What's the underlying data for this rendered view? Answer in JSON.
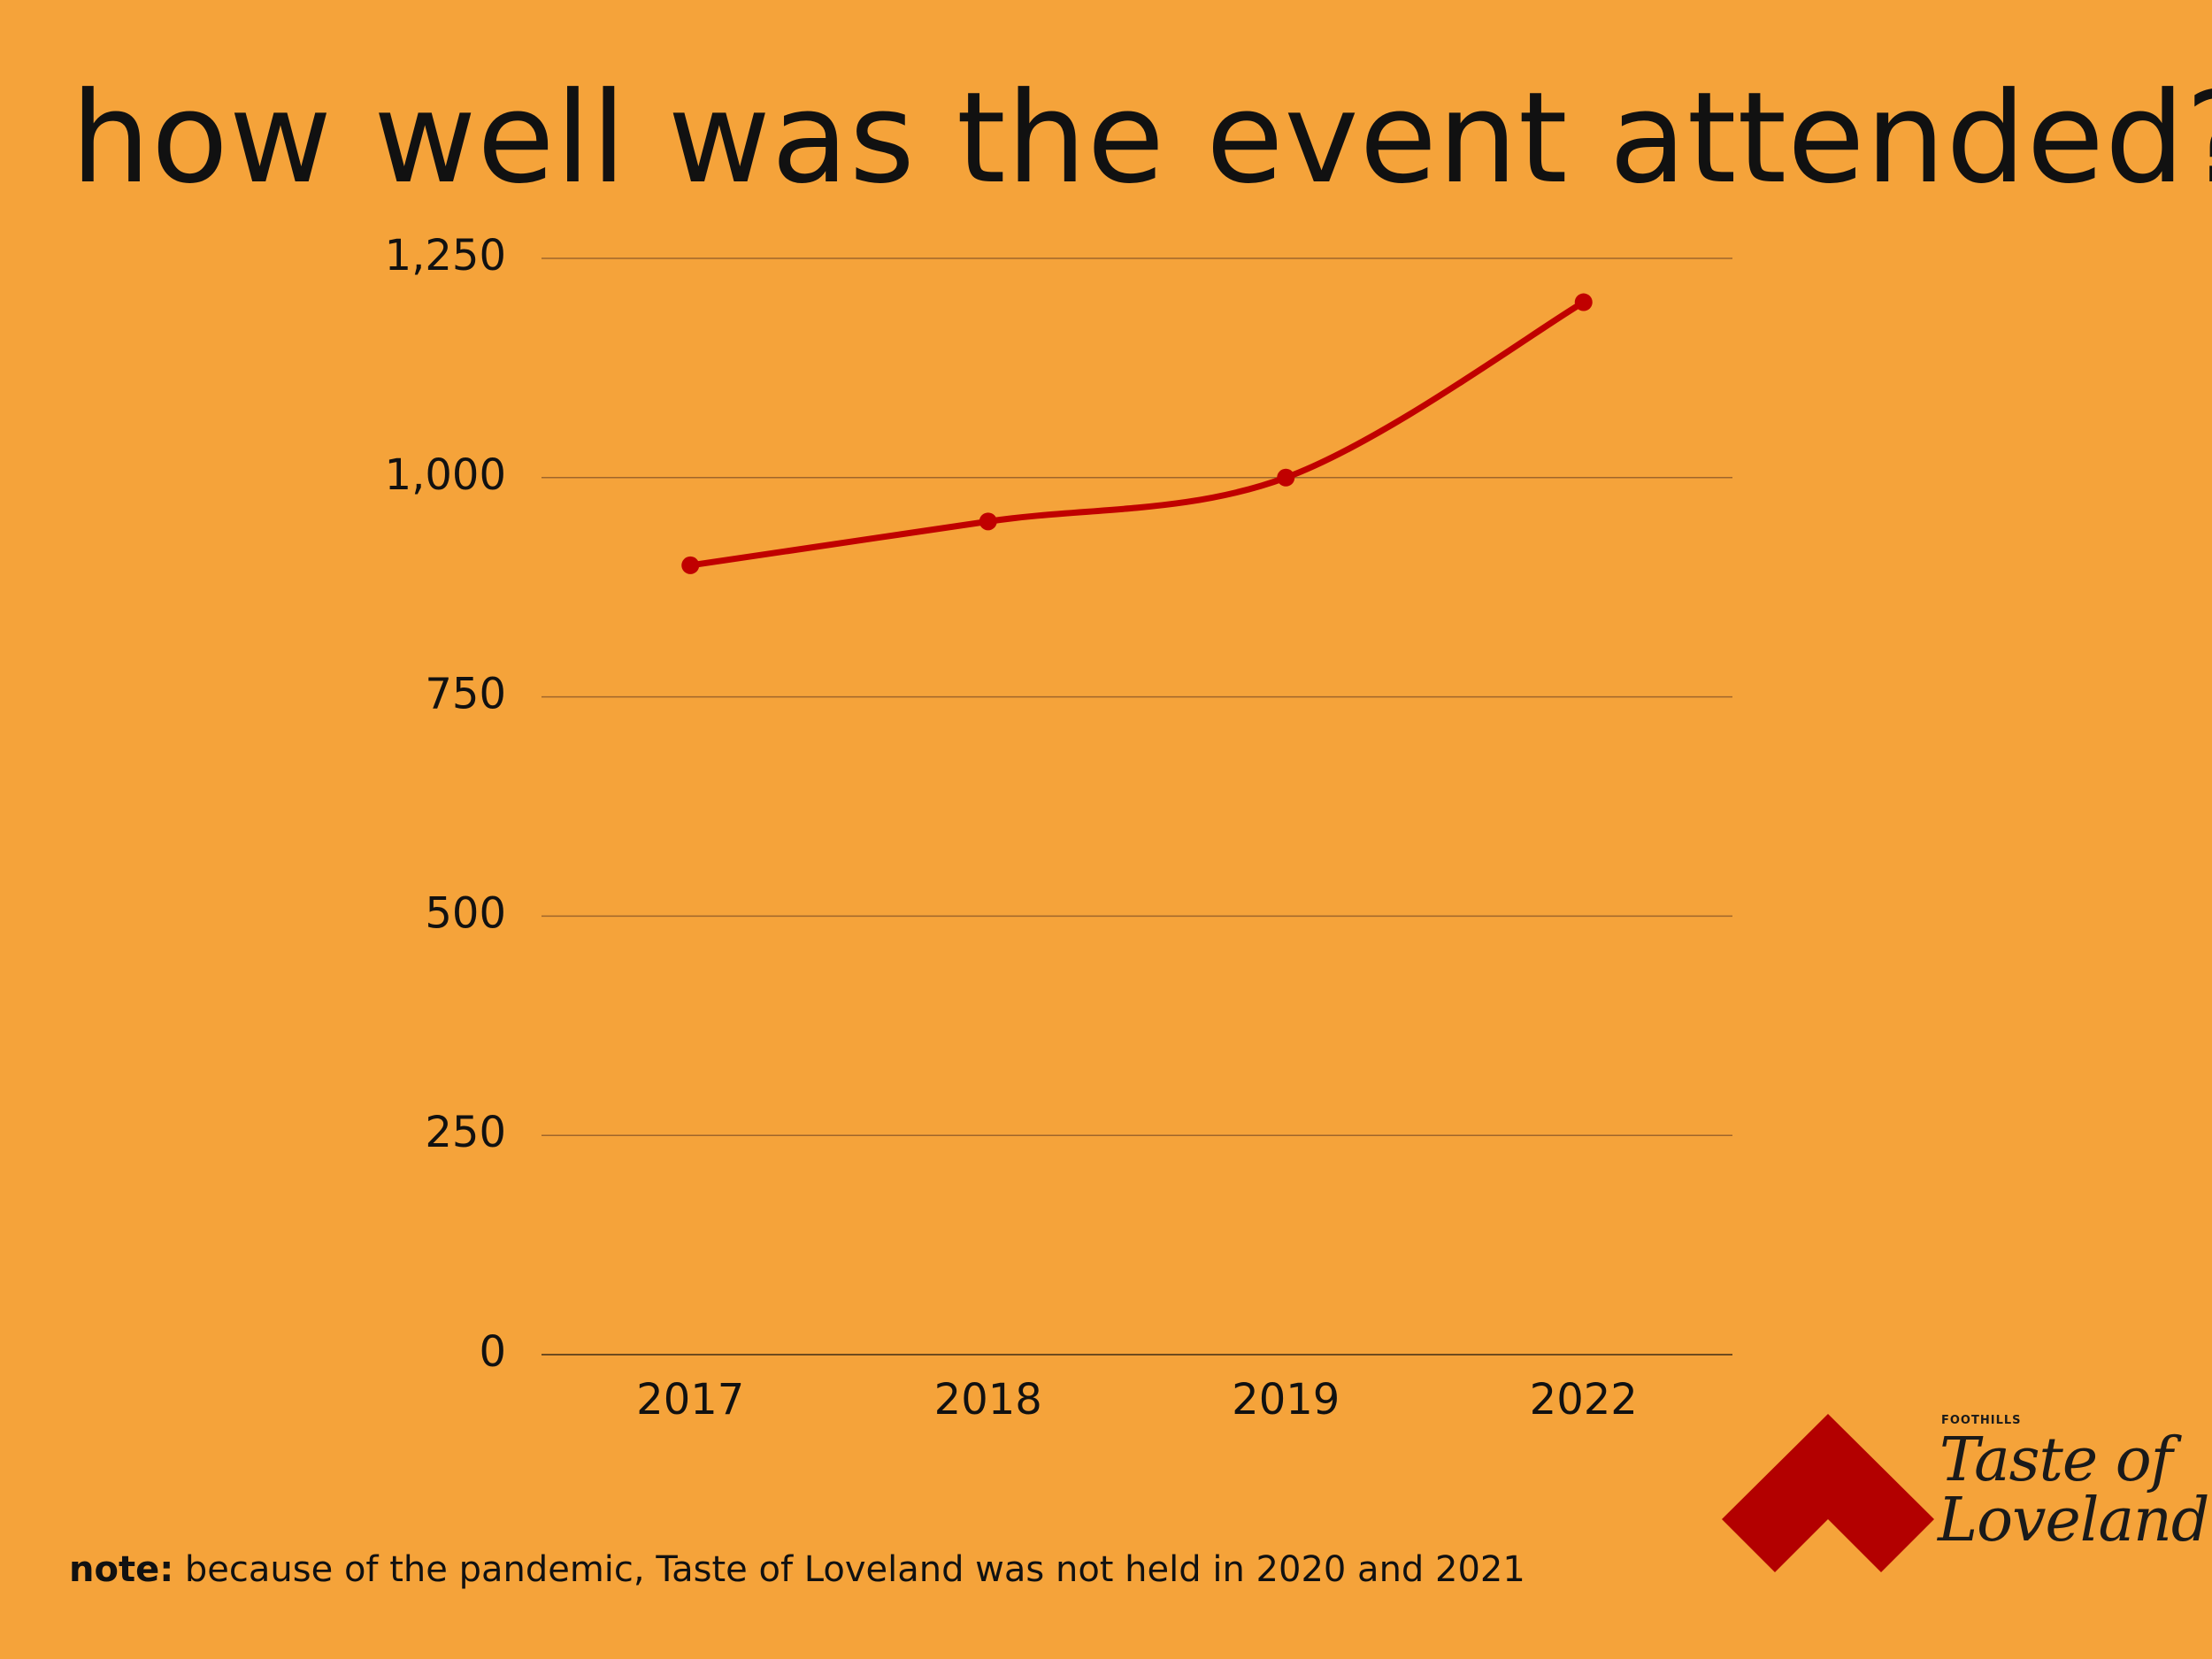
{
  "page": {
    "background_color": "#F5A33A",
    "text_color": "#111111",
    "title": "how well was the event attended?",
    "note": {
      "label": "note:",
      "text": " because of the pandemic, Taste of Loveland was not held in 2020 and 2021"
    },
    "logo": {
      "small_text": "FOOTHILLS",
      "line1": "Taste of",
      "line2": "Loveland",
      "mark_color": "#B30000",
      "text_color": "#1A1A1A",
      "icon": "chevron-up-icon"
    }
  },
  "chart_data": {
    "type": "line",
    "categories": [
      "2017",
      "2018",
      "2019",
      "2022"
    ],
    "series": [
      {
        "values": [
          900,
          950,
          1000,
          1200
        ],
        "color": "#C00000"
      }
    ],
    "ylim": [
      0,
      1250
    ],
    "yticks": [
      0,
      250,
      500,
      750,
      1000,
      1250
    ],
    "ytick_labels": [
      "0",
      "250",
      "500",
      "750",
      "1,000",
      "1,250"
    ],
    "grid": true,
    "gridline_color": "#A0662A",
    "smooth": true,
    "markers": true,
    "legend": "none"
  }
}
